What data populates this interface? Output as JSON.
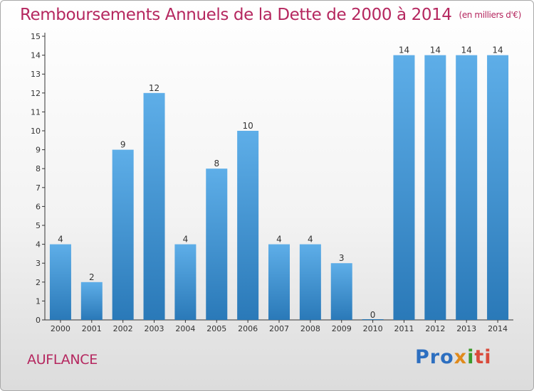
{
  "header": {
    "title": "Remboursements Annuels de la Dette de 2000 à 2014",
    "unit": "(en milliers d'€)"
  },
  "footer": {
    "place": "AUFLANCE",
    "logo": [
      "Pro",
      "x",
      "i",
      "ti"
    ]
  },
  "colors": {
    "bar_top": "#5eaee8",
    "bar_bottom": "#2a79b8",
    "title": "#b5275f"
  },
  "chart_data": {
    "type": "bar",
    "title": "Remboursements Annuels de la Dette de 2000 à 2014",
    "xlabel": "",
    "ylabel": "en milliers d'€",
    "categories": [
      "2000",
      "2001",
      "2002",
      "2003",
      "2004",
      "2005",
      "2006",
      "2007",
      "2008",
      "2009",
      "2010",
      "2011",
      "2012",
      "2013",
      "2014"
    ],
    "values": [
      4,
      2,
      9,
      12,
      4,
      8,
      10,
      4,
      4,
      3,
      0,
      14,
      14,
      14,
      14
    ],
    "ylim": [
      0,
      15
    ],
    "yticks": [
      0,
      1,
      2,
      3,
      4,
      5,
      6,
      7,
      8,
      9,
      10,
      11,
      12,
      13,
      14,
      15
    ],
    "grid": false
  }
}
